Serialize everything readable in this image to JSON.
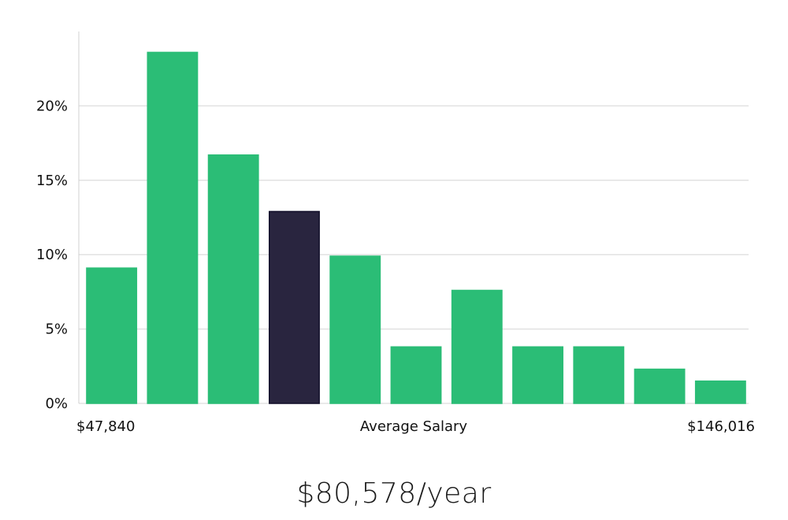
{
  "chart_data": {
    "type": "bar",
    "title": "",
    "xlabel": "Average Salary",
    "ylabel": "",
    "x_min_label": "$47,840",
    "x_max_label": "$146,016",
    "ylim": [
      0,
      25
    ],
    "yticks": [
      0,
      5,
      10,
      15,
      20
    ],
    "ytick_labels": [
      "0%",
      "5%",
      "10%",
      "15%",
      "20%"
    ],
    "grid": true,
    "values": [
      9.1,
      23.6,
      16.7,
      12.9,
      9.9,
      3.8,
      7.6,
      3.8,
      3.8,
      2.3,
      1.5
    ],
    "highlight_index": 3,
    "colors": {
      "bar": "#2bbd76",
      "highlight": "#29253f",
      "highlight_stroke": "#120f2a",
      "grid": "#e2e2e2",
      "axis": "#d0d0d0"
    }
  },
  "salary_headline": "$80,578/year"
}
